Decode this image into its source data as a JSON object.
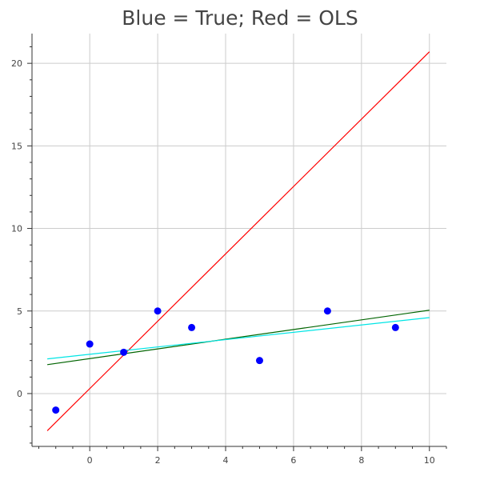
{
  "chart_data": {
    "type": "scatter",
    "title": "Blue = True; Red = OLS",
    "xlabel": "",
    "ylabel": "",
    "xlim": [
      -1.7,
      10.5
    ],
    "ylim": [
      -3.2,
      21.8
    ],
    "grid": true,
    "x_ticks": [
      0,
      2,
      4,
      6,
      8,
      10
    ],
    "y_ticks": [
      0,
      5,
      10,
      15,
      20
    ],
    "points": {
      "color": "#0000ff",
      "x": [
        -1,
        0,
        1,
        2,
        3,
        5,
        7,
        9
      ],
      "y": [
        -1,
        3,
        2.5,
        5,
        4,
        2,
        5,
        4
      ]
    },
    "lines": [
      {
        "color": "#ff0000",
        "x": [
          -1.25,
          10
        ],
        "y": [
          -2.25,
          20.7
        ]
      },
      {
        "color": "#006400",
        "x": [
          -1.25,
          10
        ],
        "y": [
          1.75,
          5.05
        ]
      },
      {
        "color": "#00e5e5",
        "x": [
          -1.25,
          10
        ],
        "y": [
          2.1,
          4.6
        ]
      }
    ]
  }
}
